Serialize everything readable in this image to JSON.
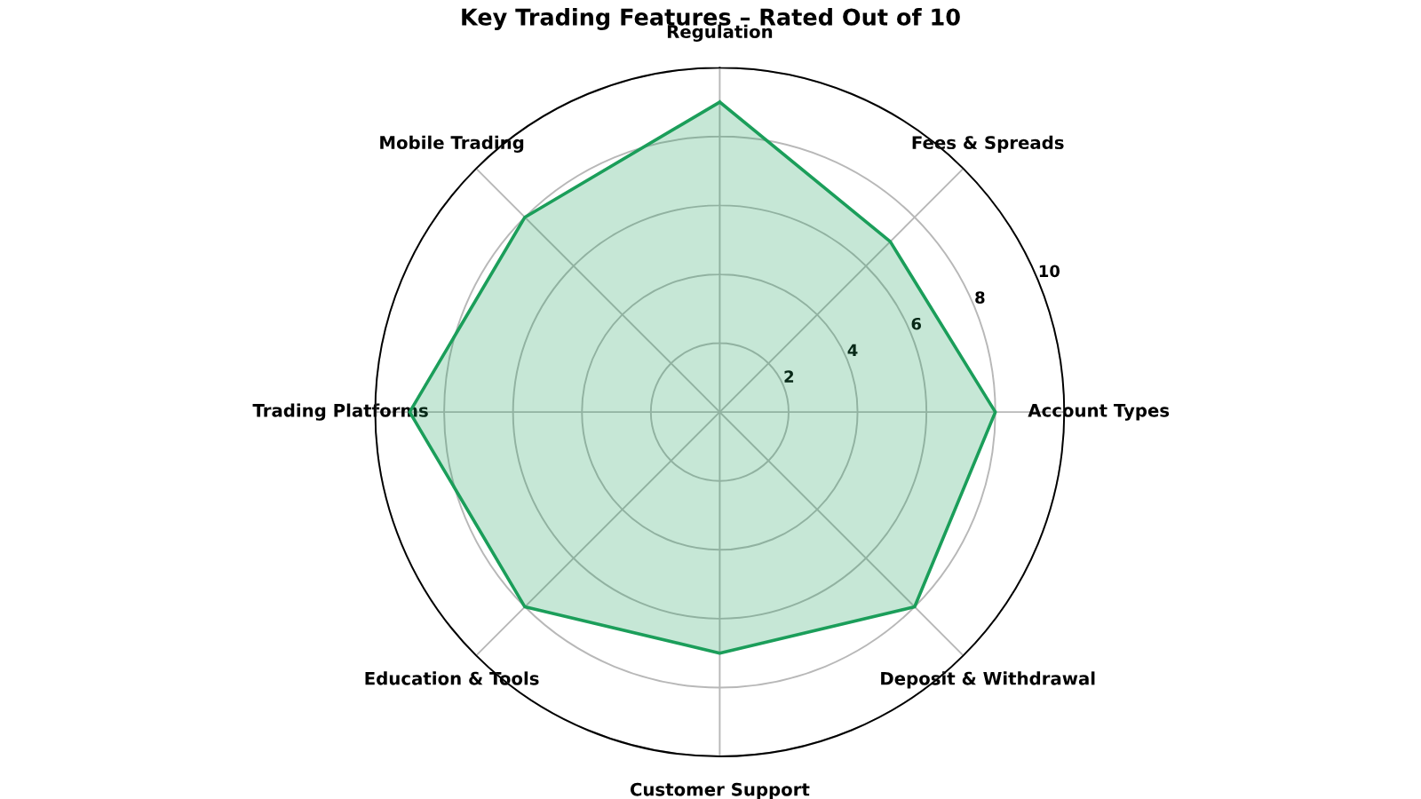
{
  "chart_data": {
    "type": "radar",
    "title": "Key Trading Features – Rated Out of 10",
    "categories": [
      "Regulation",
      "Fees & Spreads",
      "Account Types",
      "Deposit & Withdrawal",
      "Customer Support",
      "Education & Tools",
      "Trading Platforms",
      "Mobile Trading"
    ],
    "series": [
      {
        "color": "#1b9e5a",
        "values": [
          9,
          7,
          8,
          8,
          7,
          8,
          9,
          8
        ]
      }
    ],
    "ylim": [
      0,
      10
    ],
    "yticks": [
      2,
      4,
      6,
      8,
      10
    ],
    "grid": true
  }
}
